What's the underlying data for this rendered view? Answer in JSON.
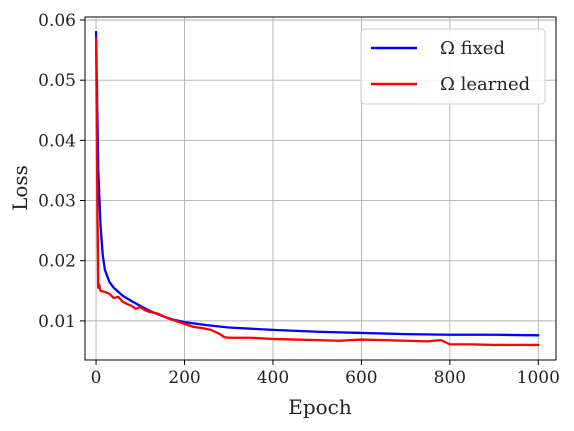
{
  "chart_data": {
    "type": "line",
    "title": "",
    "xlabel": "Epoch",
    "ylabel": "Loss",
    "xlim": [
      -25,
      1040
    ],
    "ylim": [
      0.0035,
      0.0605
    ],
    "xticks": [
      0,
      200,
      400,
      600,
      800,
      1000
    ],
    "xtick_labels": [
      "0",
      "200",
      "400",
      "600",
      "800",
      "1000"
    ],
    "yticks": [
      0.01,
      0.02,
      0.03,
      0.04,
      0.05,
      0.06
    ],
    "ytick_labels": [
      "0.01",
      "0.02",
      "0.03",
      "0.04",
      "0.05",
      "0.06"
    ],
    "grid": true,
    "legend_position": "top-right",
    "series": [
      {
        "name": "Ω fixed",
        "color": "#0000ff",
        "x": [
          0,
          5,
          10,
          15,
          20,
          30,
          40,
          60,
          80,
          100,
          120,
          150,
          175,
          200,
          250,
          300,
          400,
          500,
          600,
          700,
          800,
          900,
          1000
        ],
        "y": [
          0.058,
          0.035,
          0.026,
          0.021,
          0.0185,
          0.0165,
          0.0155,
          0.0142,
          0.0133,
          0.0125,
          0.0117,
          0.0108,
          0.0102,
          0.0098,
          0.0093,
          0.0089,
          0.0085,
          0.0082,
          0.008,
          0.0078,
          0.0077,
          0.0077,
          0.0076
        ]
      },
      {
        "name": "Ω learned",
        "color": "#ff0000",
        "x": [
          0,
          3,
          5,
          7,
          10,
          20,
          30,
          40,
          50,
          60,
          70,
          80,
          90,
          100,
          110,
          120,
          140,
          160,
          180,
          200,
          220,
          240,
          260,
          280,
          290,
          300,
          350,
          400,
          450,
          500,
          550,
          600,
          650,
          700,
          750,
          780,
          800,
          850,
          900,
          950,
          1000
        ],
        "y": [
          0.057,
          0.03,
          0.0155,
          0.016,
          0.015,
          0.0148,
          0.0145,
          0.0138,
          0.014,
          0.0132,
          0.0128,
          0.0125,
          0.012,
          0.0123,
          0.0118,
          0.0115,
          0.0112,
          0.0105,
          0.01,
          0.0095,
          0.009,
          0.0088,
          0.0085,
          0.0078,
          0.0073,
          0.0072,
          0.0072,
          0.007,
          0.0069,
          0.0068,
          0.0067,
          0.0069,
          0.0068,
          0.0067,
          0.0066,
          0.0068,
          0.0061,
          0.0061,
          0.006,
          0.006,
          0.006
        ]
      }
    ]
  }
}
